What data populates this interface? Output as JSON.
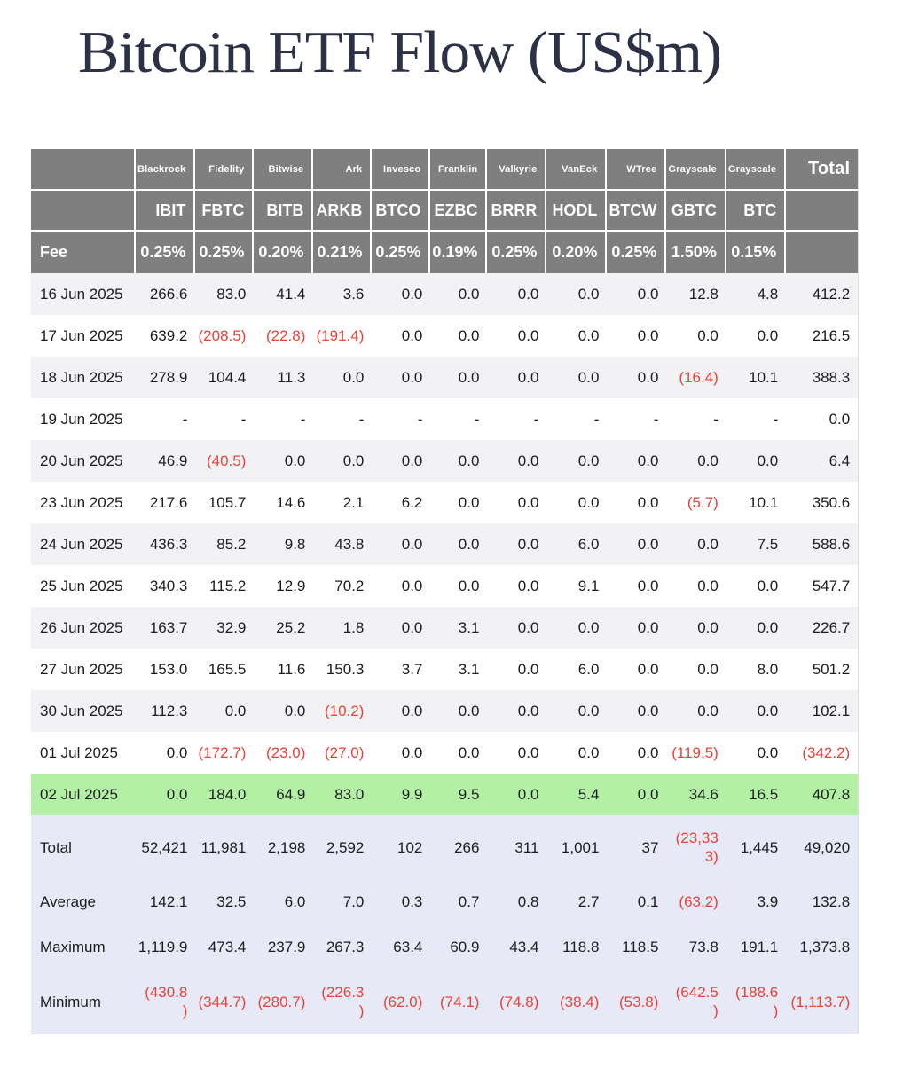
{
  "chart_data": {
    "type": "table",
    "title": "Bitcoin ETF Flow (US$m)",
    "providers": [
      "Blackrock",
      "Fidelity",
      "Bitwise",
      "Ark",
      "Invesco",
      "Franklin",
      "Valkyrie",
      "VanEck",
      "WTree",
      "Grayscale",
      "Grayscale"
    ],
    "tickers": [
      "IBIT",
      "FBTC",
      "BITB",
      "ARKB",
      "BTCO",
      "EZBC",
      "BRRR",
      "HODL",
      "BTCW",
      "GBTC",
      "BTC"
    ],
    "total_column_label": "Total",
    "fee_row_label": "Fee",
    "fees": [
      "0.25%",
      "0.25%",
      "0.20%",
      "0.21%",
      "0.25%",
      "0.19%",
      "0.25%",
      "0.20%",
      "0.25%",
      "1.50%",
      "0.15%"
    ],
    "rows": [
      {
        "date": "16 Jun 2025",
        "values": [
          "266.6",
          "83.0",
          "41.4",
          "3.6",
          "0.0",
          "0.0",
          "0.0",
          "0.0",
          "0.0",
          "12.8",
          "4.8"
        ],
        "total": "412.2",
        "highlight": false
      },
      {
        "date": "17 Jun 2025",
        "values": [
          "639.2",
          "(208.5)",
          "(22.8)",
          "(191.4)",
          "0.0",
          "0.0",
          "0.0",
          "0.0",
          "0.0",
          "0.0",
          "0.0"
        ],
        "total": "216.5",
        "highlight": false
      },
      {
        "date": "18 Jun 2025",
        "values": [
          "278.9",
          "104.4",
          "11.3",
          "0.0",
          "0.0",
          "0.0",
          "0.0",
          "0.0",
          "0.0",
          "(16.4)",
          "10.1"
        ],
        "total": "388.3",
        "highlight": false
      },
      {
        "date": "19 Jun 2025",
        "values": [
          "-",
          "-",
          "-",
          "-",
          "-",
          "-",
          "-",
          "-",
          "-",
          "-",
          "-"
        ],
        "total": "0.0",
        "highlight": false
      },
      {
        "date": "20 Jun 2025",
        "values": [
          "46.9",
          "(40.5)",
          "0.0",
          "0.0",
          "0.0",
          "0.0",
          "0.0",
          "0.0",
          "0.0",
          "0.0",
          "0.0"
        ],
        "total": "6.4",
        "highlight": false
      },
      {
        "date": "23 Jun 2025",
        "values": [
          "217.6",
          "105.7",
          "14.6",
          "2.1",
          "6.2",
          "0.0",
          "0.0",
          "0.0",
          "0.0",
          "(5.7)",
          "10.1"
        ],
        "total": "350.6",
        "highlight": false
      },
      {
        "date": "24 Jun 2025",
        "values": [
          "436.3",
          "85.2",
          "9.8",
          "43.8",
          "0.0",
          "0.0",
          "0.0",
          "6.0",
          "0.0",
          "0.0",
          "7.5"
        ],
        "total": "588.6",
        "highlight": false
      },
      {
        "date": "25 Jun 2025",
        "values": [
          "340.3",
          "115.2",
          "12.9",
          "70.2",
          "0.0",
          "0.0",
          "0.0",
          "9.1",
          "0.0",
          "0.0",
          "0.0"
        ],
        "total": "547.7",
        "highlight": false
      },
      {
        "date": "26 Jun 2025",
        "values": [
          "163.7",
          "32.9",
          "25.2",
          "1.8",
          "0.0",
          "3.1",
          "0.0",
          "0.0",
          "0.0",
          "0.0",
          "0.0"
        ],
        "total": "226.7",
        "highlight": false
      },
      {
        "date": "27 Jun 2025",
        "values": [
          "153.0",
          "165.5",
          "11.6",
          "150.3",
          "3.7",
          "3.1",
          "0.0",
          "6.0",
          "0.0",
          "0.0",
          "8.0"
        ],
        "total": "501.2",
        "highlight": false
      },
      {
        "date": "30 Jun 2025",
        "values": [
          "112.3",
          "0.0",
          "0.0",
          "(10.2)",
          "0.0",
          "0.0",
          "0.0",
          "0.0",
          "0.0",
          "0.0",
          "0.0"
        ],
        "total": "102.1",
        "highlight": false
      },
      {
        "date": "01 Jul 2025",
        "values": [
          "0.0",
          "(172.7)",
          "(23.0)",
          "(27.0)",
          "0.0",
          "0.0",
          "0.0",
          "0.0",
          "0.0",
          "(119.5)",
          "0.0"
        ],
        "total": "(342.2)",
        "highlight": false
      },
      {
        "date": "02 Jul 2025",
        "values": [
          "0.0",
          "184.0",
          "64.9",
          "83.0",
          "9.9",
          "9.5",
          "0.0",
          "5.4",
          "0.0",
          "34.6",
          "16.5"
        ],
        "total": "407.8",
        "highlight": true
      }
    ],
    "summary_rows": [
      {
        "label": "Total",
        "values": [
          "52,421",
          "11,981",
          "2,198",
          "2,592",
          "102",
          "266",
          "311",
          "1,001",
          "37",
          "(23,33\n3)",
          "1,445"
        ],
        "total": "49,020"
      },
      {
        "label": "Average",
        "values": [
          "142.1",
          "32.5",
          "6.0",
          "7.0",
          "0.3",
          "0.7",
          "0.8",
          "2.7",
          "0.1",
          "(63.2)",
          "3.9"
        ],
        "total": "132.8"
      },
      {
        "label": "Maximum",
        "values": [
          "1,119.9",
          "473.4",
          "237.9",
          "267.3",
          "63.4",
          "60.9",
          "43.4",
          "118.8",
          "118.5",
          "73.8",
          "191.1"
        ],
        "total": "1,373.8"
      },
      {
        "label": "Minimum",
        "values": [
          "(430.8\n)",
          "(344.7)",
          "(280.7)",
          "(226.3\n)",
          "(62.0)",
          "(74.1)",
          "(74.8)",
          "(38.4)",
          "(53.8)",
          "(642.5\n)",
          "(188.6\n)"
        ],
        "total": "(1,113.7)"
      }
    ]
  },
  "colors": {
    "header_gray": "#7f7f7f",
    "stripe_gray": "#f2f2f4",
    "summary_lavender": "#e7eaf6",
    "highlight_green": "#b2f0a4",
    "negative_red": "#e8433a",
    "title_navy": "#2c3145",
    "text": "#1c1c1e"
  }
}
